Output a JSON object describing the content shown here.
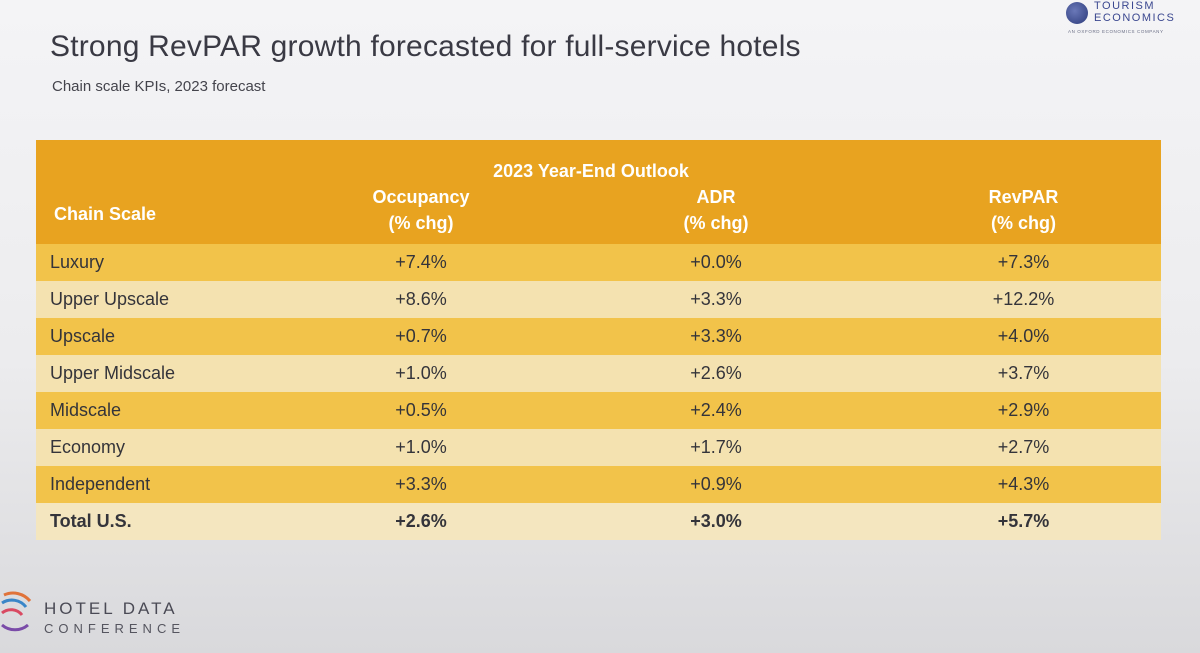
{
  "slide": {
    "title": "Strong RevPAR growth forecasted for full-service hotels",
    "subtitle": "Chain scale KPIs, 2023 forecast"
  },
  "logos": {
    "tourism_economics": {
      "line1": "TOURISM",
      "line2": "ECONOMICS",
      "tagline": "AN OXFORD ECONOMICS COMPANY"
    },
    "hotel_data_conference": {
      "line1": "HOTEL DATA",
      "line2": "CONFERENCE"
    }
  },
  "table": {
    "group_header": "2023 Year-End Outlook",
    "columns": {
      "chain": "Chain Scale",
      "occupancy": {
        "line1": "Occupancy",
        "line2": "(% chg)"
      },
      "adr": {
        "line1": "ADR",
        "line2": "(% chg)"
      },
      "revpar": {
        "line1": "RevPAR",
        "line2": "(% chg)"
      }
    },
    "rows": [
      {
        "chain": "Luxury",
        "occupancy": "+7.4%",
        "adr": "+0.0%",
        "revpar": "+7.3%"
      },
      {
        "chain": "Upper Upscale",
        "occupancy": "+8.6%",
        "adr": "+3.3%",
        "revpar": "+12.2%"
      },
      {
        "chain": "Upscale",
        "occupancy": "+0.7%",
        "adr": "+3.3%",
        "revpar": "+4.0%"
      },
      {
        "chain": "Upper Midscale",
        "occupancy": "+1.0%",
        "adr": "+2.6%",
        "revpar": "+3.7%"
      },
      {
        "chain": "Midscale",
        "occupancy": "+0.5%",
        "adr": "+2.4%",
        "revpar": "+2.9%"
      },
      {
        "chain": "Economy",
        "occupancy": "+1.0%",
        "adr": "+1.7%",
        "revpar": "+2.7%"
      },
      {
        "chain": "Independent",
        "occupancy": "+3.3%",
        "adr": "+0.9%",
        "revpar": "+4.3%"
      }
    ],
    "total": {
      "chain": "Total U.S.",
      "occupancy": "+2.6%",
      "adr": "+3.0%",
      "revpar": "+5.7%"
    }
  }
}
